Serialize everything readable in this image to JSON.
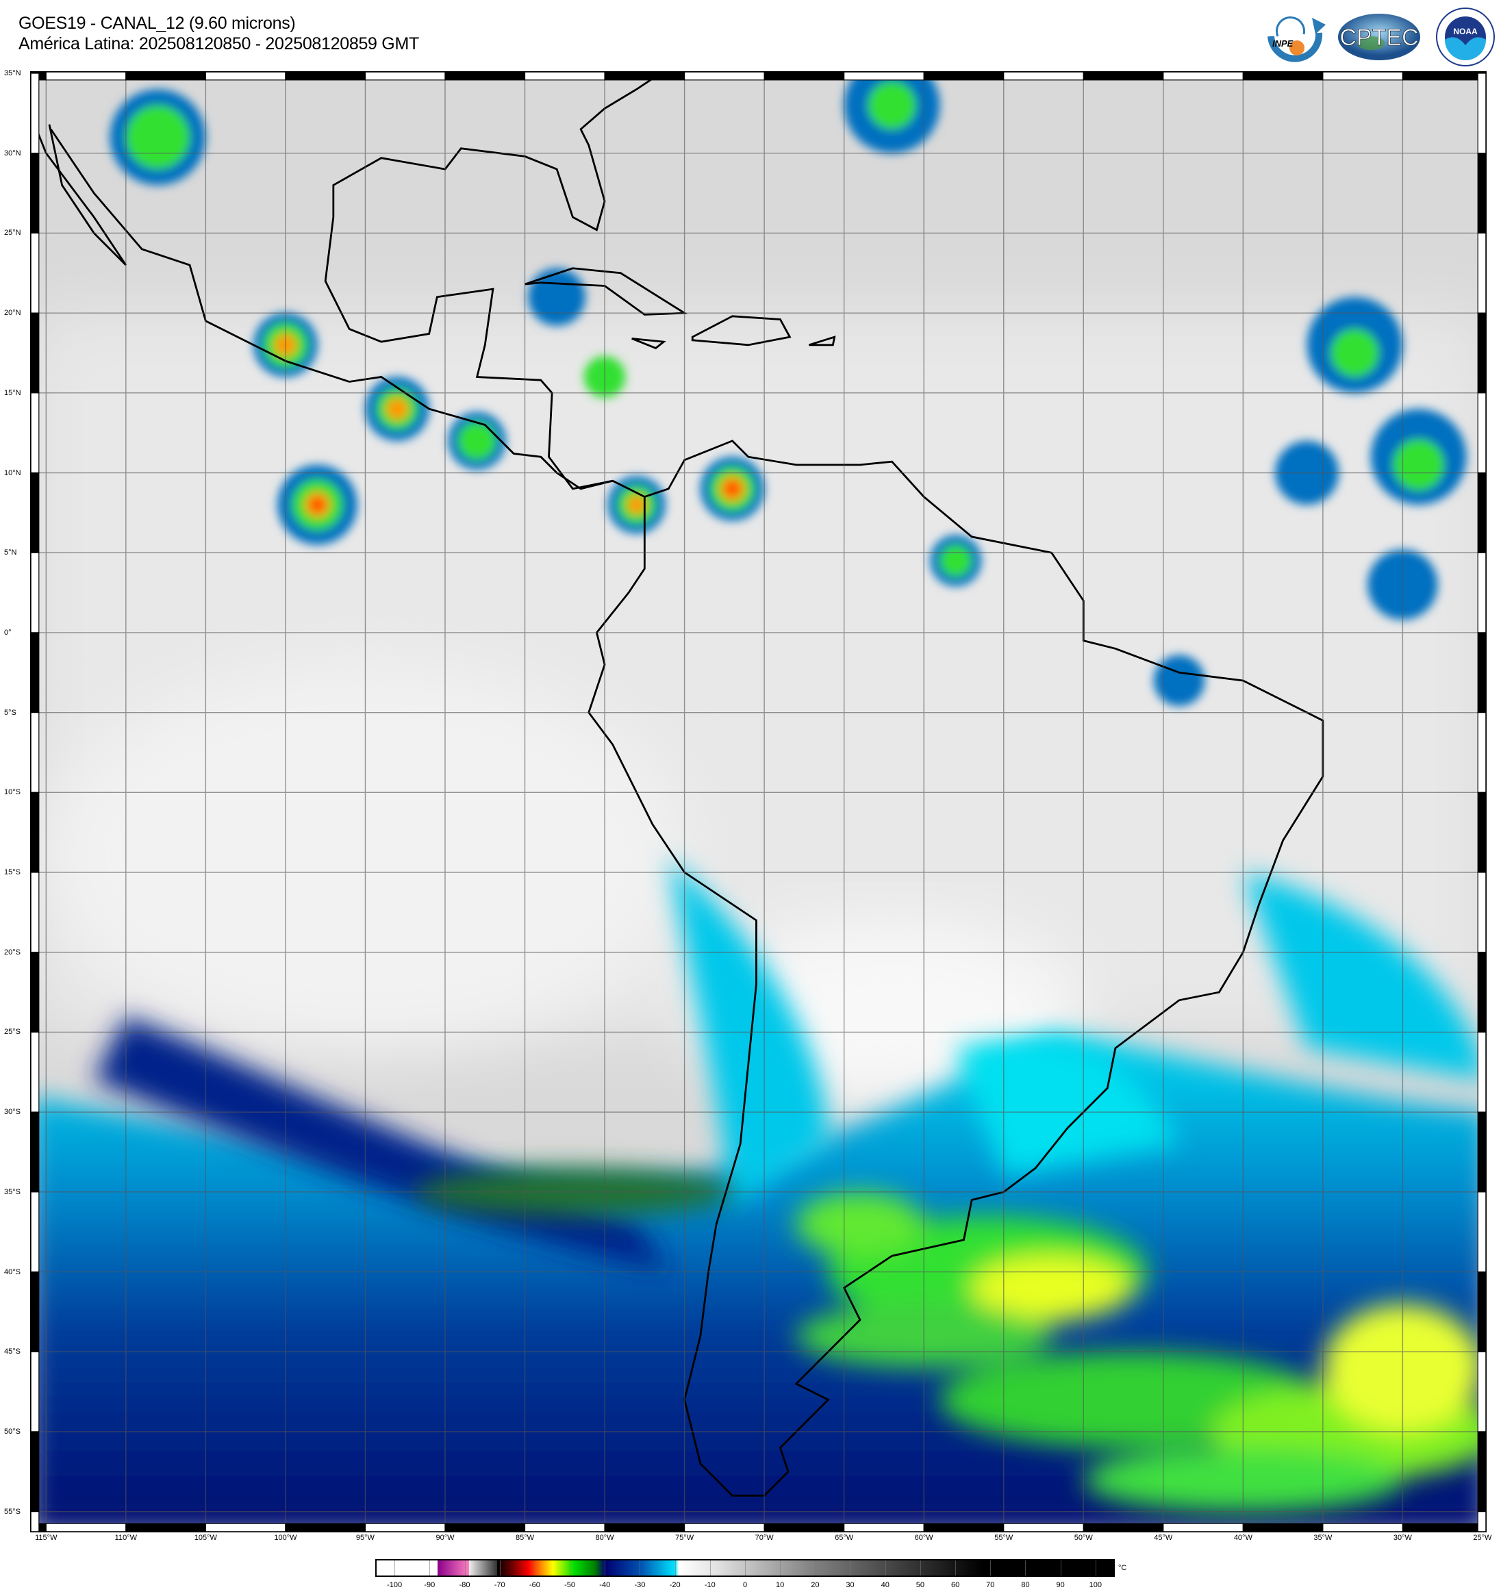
{
  "header": {
    "title": "GOES19 - CANAL_12 (9.60 microns)",
    "subtitle": "América Latina: 202508120850 - 202508120859 GMT"
  },
  "logos": [
    {
      "name": "INPE",
      "text": "INPE"
    },
    {
      "name": "CPTEC",
      "text": "CPTEC"
    },
    {
      "name": "NOAA",
      "text": "NOAA",
      "ring_text": "NATIONAL OCEANIC AND ATMOSPHERIC ADMINISTRATION · U.S. DEPARTMENT OF COMMERCE"
    }
  ],
  "map": {
    "projection": "equirectangular",
    "grid_interval_deg": 5,
    "lat_labels": [
      "35°N",
      "30°N",
      "25°N",
      "20°N",
      "15°N",
      "10°N",
      "5°N",
      "0°",
      "5°S",
      "10°S",
      "15°S",
      "20°S",
      "25°S",
      "30°S",
      "35°S",
      "40°S",
      "45°S",
      "50°S",
      "55°S"
    ],
    "lon_labels": [
      "115°W",
      "110°W",
      "105°W",
      "100°W",
      "95°W",
      "90°W",
      "85°W",
      "80°W",
      "75°W",
      "70°W",
      "65°W",
      "60°W",
      "55°W",
      "50°W",
      "45°W",
      "40°W",
      "35°W",
      "30°W",
      "25°W"
    ]
  },
  "colorbar": {
    "unit": "°C",
    "ticks": [
      "-100",
      "-90",
      "-80",
      "-70",
      "-60",
      "-50",
      "-40",
      "-30",
      "-20",
      "-10",
      "0",
      "10",
      "20",
      "30",
      "40",
      "50",
      "60",
      "70",
      "80",
      "90",
      "100"
    ],
    "colors": {
      "cold_purple": "#8b008b",
      "pink": "#ff80c0",
      "red": "#ff0000",
      "orange": "#ff9900",
      "yellow": "#ffff00",
      "green": "#00e000",
      "dark_blue": "#000070",
      "cyan": "#00e5ff"
    }
  }
}
